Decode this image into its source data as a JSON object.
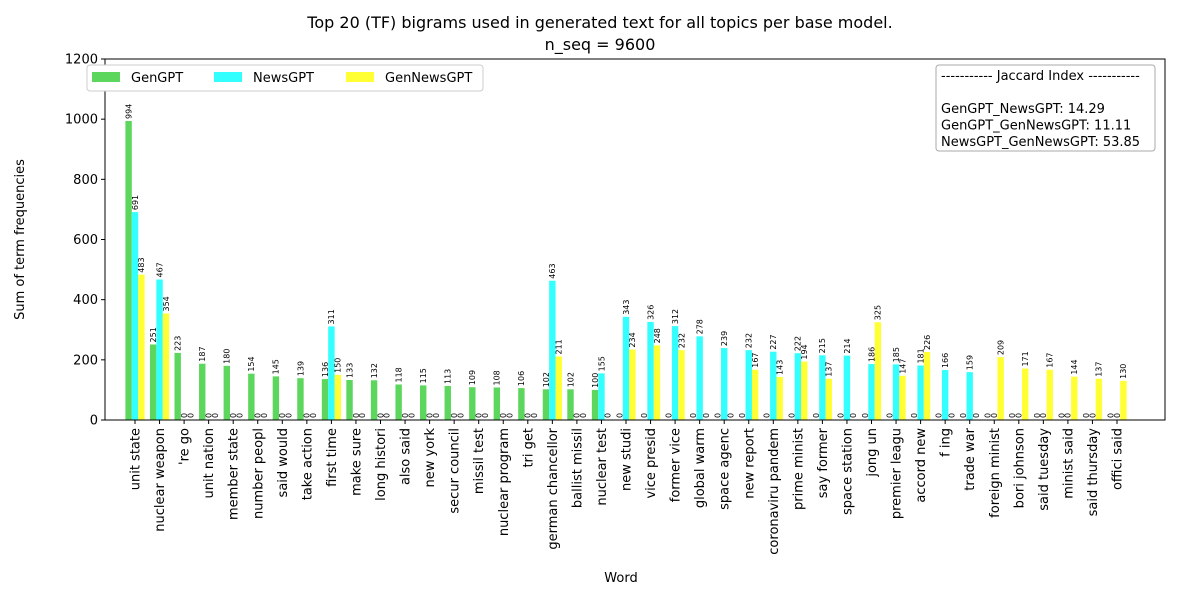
{
  "chart_data": {
    "type": "bar",
    "title": "Top 20 (TF) bigrams used in generated text for all topics per base model.",
    "subtitle": "n_seq = 9600",
    "xlabel": "Word",
    "ylabel": "Sum of term frequencies",
    "ylim": [
      0,
      1200
    ],
    "yticks": [
      "0",
      "200",
      "400",
      "600",
      "800",
      "1000",
      "1200"
    ],
    "grid": false,
    "legend_position": "top-left",
    "categories": [
      "unit state",
      "nuclear weapon",
      "'re go",
      "unit nation",
      "member state",
      "number peopl",
      "said would",
      "take action",
      "first time",
      "make sure",
      "long histori",
      "also said",
      "new york",
      "secur council",
      "missil test",
      "nuclear program",
      "tri get",
      "german chancellor",
      "ballist missil",
      "nuclear test",
      "new studi",
      "vice presid",
      "former vice",
      "global warm",
      "space agenc",
      "new report",
      "coronaviru pandem",
      "prime minist",
      "say former",
      "space station",
      "jong un",
      "premier leagu",
      "accord new",
      "f ing",
      "trade war",
      "foreign minist",
      "bori johnson",
      "said tuesday",
      "minist said",
      "said thursday",
      "offici said"
    ],
    "series": [
      {
        "name": "GenGPT",
        "color": "#5cd65c",
        "values": [
          994,
          251,
          223,
          187,
          180,
          154,
          145,
          139,
          136,
          133,
          132,
          118,
          115,
          113,
          109,
          108,
          106,
          102,
          102,
          100,
          0,
          0,
          0,
          0,
          0,
          0,
          0,
          0,
          0,
          0,
          0,
          0,
          0,
          0,
          0,
          0,
          0,
          0,
          0,
          0,
          0
        ]
      },
      {
        "name": "NewsGPT",
        "color": "#33ffff",
        "values": [
          691,
          467,
          0,
          0,
          0,
          0,
          0,
          0,
          311,
          0,
          0,
          0,
          0,
          0,
          0,
          0,
          0,
          463,
          0,
          155,
          343,
          326,
          312,
          278,
          239,
          232,
          227,
          222,
          215,
          214,
          186,
          185,
          181,
          166,
          159,
          0,
          0,
          0,
          0,
          0,
          0
        ]
      },
      {
        "name": "GenNewsGPT",
        "color": "#ffff33",
        "values": [
          483,
          354,
          0,
          0,
          0,
          0,
          0,
          0,
          150,
          0,
          0,
          0,
          0,
          0,
          0,
          0,
          0,
          211,
          0,
          0,
          234,
          248,
          232,
          0,
          0,
          167,
          143,
          194,
          137,
          0,
          325,
          147,
          226,
          0,
          0,
          209,
          171,
          167,
          144,
          137,
          130
        ]
      }
    ],
    "jaccard": {
      "heading": "----------- Jaccard Index -----------",
      "lines": [
        "GenGPT_NewsGPT: 14.29",
        "GenGPT_GenNewsGPT: 11.11",
        "NewsGPT_GenNewsGPT: 53.85"
      ]
    }
  }
}
